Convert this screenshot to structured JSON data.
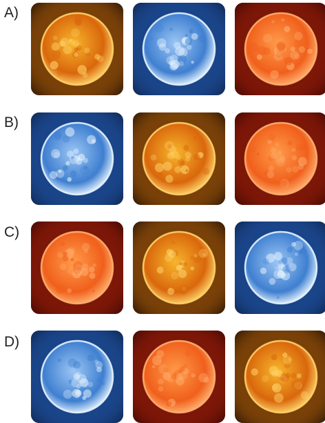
{
  "options": [
    {
      "label": "A)",
      "images": [
        "yellow-star",
        "blue-star",
        "red-star"
      ]
    },
    {
      "label": "B)",
      "images": [
        "blue-star",
        "yellow-star",
        "red-star"
      ]
    },
    {
      "label": "C)",
      "images": [
        "red-star",
        "yellow-star",
        "blue-star"
      ]
    },
    {
      "label": "D)",
      "images": [
        "blue-star",
        "red-star",
        "yellow-star"
      ]
    }
  ],
  "star_colors": {
    "yellow-star": {
      "core": "#f7b52c",
      "mid": "#d9670c",
      "rim": "#ffd36a",
      "halo": "#ff8a10",
      "bg": "#0a0402"
    },
    "blue-star": {
      "core": "#9cc6f4",
      "mid": "#3f7fd0",
      "rim": "#e6f4ff",
      "halo": "#2e78e8",
      "bg": "#0a1a3a"
    },
    "red-star": {
      "core": "#ff9a4a",
      "mid": "#f0601c",
      "rim": "#ffb070",
      "halo": "#e0300e",
      "bg": "#2a0202"
    }
  }
}
